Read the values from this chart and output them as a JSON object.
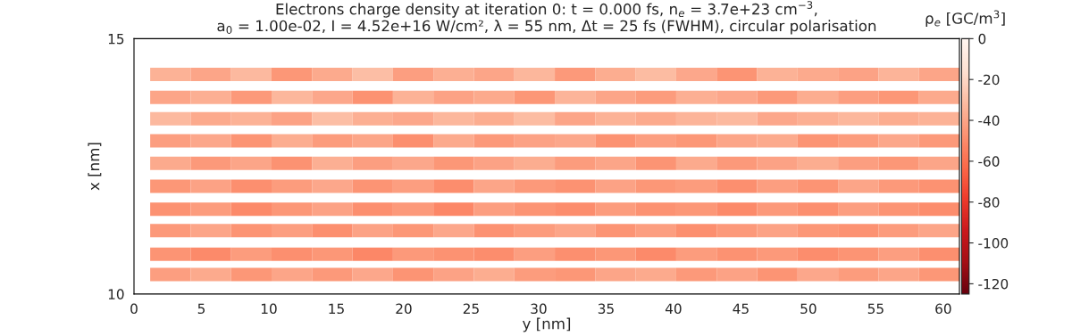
{
  "chart_data": {
    "type": "heatmap",
    "title": "Electrons charge density at iteration 0: t = 0.000 fs, n$_{e}$ = 3.7e+23 cm$^{−3}$,\na$_{0}$ = 1.00e-02, I = 4.52e+16 W/cm², λ = 55 nm, Δt = 25 fs (FWHM), circular polarisation",
    "xlabel": "y [nm]",
    "ylabel": "x [nm]",
    "clabel": "ρ$_{e}$ [GC/m$^{3}$]",
    "x": [
      2.7,
      5.7,
      8.7,
      11.7,
      14.7,
      17.7,
      20.7,
      23.7,
      26.7,
      29.7,
      32.7,
      35.7,
      38.7,
      41.7,
      44.7,
      47.7,
      50.7,
      53.7,
      56.7,
      59.7
    ],
    "y": [
      14.3,
      13.85,
      13.43,
      13.0,
      12.56,
      12.11,
      11.66,
      11.24,
      10.78,
      10.38
    ],
    "cells": [
      [
        -35,
        -40,
        -32,
        -45,
        -38,
        -30,
        -42,
        -36,
        -40,
        -33,
        -44,
        -37,
        -31,
        -39,
        -46,
        -35,
        -38,
        -41,
        -34,
        -40
      ],
      [
        -40,
        -36,
        -44,
        -33,
        -39,
        -47,
        -35,
        -41,
        -38,
        -45,
        -34,
        -40,
        -43,
        -36,
        -39,
        -44,
        -37,
        -42,
        -45,
        -38
      ],
      [
        -32,
        -38,
        -35,
        -41,
        -30,
        -36,
        -39,
        -33,
        -37,
        -31,
        -40,
        -35,
        -38,
        -34,
        -32,
        -39,
        -36,
        -33,
        -37,
        -35
      ],
      [
        -42,
        -39,
        -46,
        -37,
        -43,
        -40,
        -48,
        -38,
        -44,
        -41,
        -39,
        -47,
        -42,
        -45,
        -40,
        -38,
        -46,
        -43,
        -39,
        -44
      ],
      [
        -38,
        -44,
        -40,
        -47,
        -36,
        -42,
        -39,
        -45,
        -41,
        -37,
        -43,
        -40,
        -46,
        -38,
        -44,
        -41,
        -37,
        -42,
        -45,
        -40
      ],
      [
        -45,
        -41,
        -48,
        -43,
        -39,
        -46,
        -42,
        -49,
        -40,
        -44,
        -47,
        -41,
        -45,
        -43,
        -48,
        -42,
        -46,
        -40,
        -44,
        -47
      ],
      [
        -47,
        -43,
        -50,
        -45,
        -41,
        -48,
        -44,
        -51,
        -42,
        -46,
        -49,
        -43,
        -47,
        -45,
        -50,
        -44,
        -48,
        -42,
        -46,
        -49
      ],
      [
        -44,
        -40,
        -46,
        -42,
        -48,
        -41,
        -45,
        -39,
        -47,
        -43,
        -40,
        -46,
        -42,
        -48,
        -44,
        -41,
        -45,
        -47,
        -43,
        -40
      ],
      [
        -46,
        -50,
        -43,
        -48,
        -45,
        -51,
        -44,
        -47,
        -49,
        -42,
        -48,
        -45,
        -50,
        -43,
        -47,
        -44,
        -49,
        -46,
        -42,
        -48
      ],
      [
        -42,
        -38,
        -45,
        -40,
        -44,
        -39,
        -46,
        -41,
        -37,
        -43,
        -45,
        -40,
        -38,
        -44,
        -41,
        -46,
        -39,
        -43,
        -40,
        -45
      ]
    ],
    "clim": [
      -125,
      0
    ],
    "cticks": [
      -120,
      -100,
      -80,
      -60,
      -40,
      -20,
      0
    ],
    "xlim": [
      0,
      61.2
    ],
    "ylim": [
      10,
      15
    ],
    "xticks": [
      0,
      5,
      10,
      15,
      20,
      25,
      30,
      35,
      40,
      45,
      50,
      55,
      60
    ],
    "yticks": [
      10,
      15
    ],
    "grid": false
  }
}
